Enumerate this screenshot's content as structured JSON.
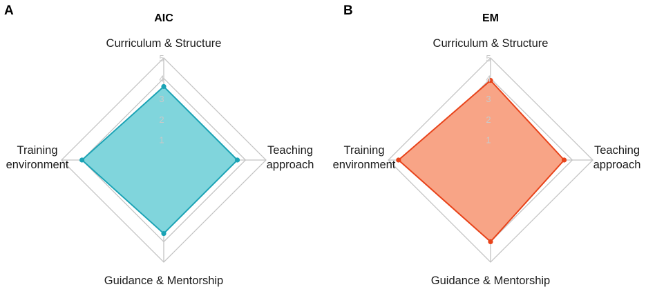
{
  "chart_data": [
    {
      "panel": "A",
      "title": "AIC",
      "type": "radar",
      "axes": [
        "Curriculum & Structure",
        "Teaching approach",
        "Guidance & Mentorship",
        "Training environment"
      ],
      "axis_label_lines": [
        [
          "Curriculum & Structure"
        ],
        [
          "Teaching",
          "approach"
        ],
        [
          "Guidance & Mentorship"
        ],
        [
          "Training",
          "environment"
        ]
      ],
      "ticks": [
        "1",
        "2",
        "3",
        "4",
        "5"
      ],
      "range": [
        0,
        5
      ],
      "grid": true,
      "series": [
        {
          "values": [
            3.6,
            3.6,
            3.6,
            4.0
          ],
          "color": "#1ba3b5",
          "fill": "#80d5dc"
        }
      ]
    },
    {
      "panel": "B",
      "title": "EM",
      "type": "radar",
      "axes": [
        "Curriculum & Structure",
        "Teaching approach",
        "Guidance & Mentorship",
        "Training environment"
      ],
      "axis_label_lines": [
        [
          "Curriculum & Structure"
        ],
        [
          "Teaching",
          "approach"
        ],
        [
          "Guidance & Mentorship"
        ],
        [
          "Training",
          "environment"
        ]
      ],
      "ticks": [
        "1",
        "2",
        "3",
        "4",
        "5"
      ],
      "range": [
        0,
        5
      ],
      "grid": true,
      "series": [
        {
          "values": [
            3.9,
            3.6,
            4.0,
            4.5
          ],
          "color": "#e8431a",
          "fill": "#f8a486"
        }
      ]
    }
  ]
}
